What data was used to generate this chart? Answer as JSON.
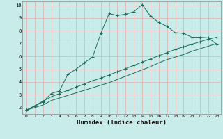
{
  "xlabel": "Humidex (Indice chaleur)",
  "xlim": [
    -0.5,
    23.5
  ],
  "ylim": [
    1.5,
    10.3
  ],
  "xticks": [
    0,
    1,
    2,
    3,
    4,
    5,
    6,
    7,
    8,
    9,
    10,
    11,
    12,
    13,
    14,
    15,
    16,
    17,
    18,
    19,
    20,
    21,
    22,
    23
  ],
  "yticks": [
    2,
    3,
    4,
    5,
    6,
    7,
    8,
    9,
    10
  ],
  "background_color": "#c8ecea",
  "grid_color": "#e8aaaa",
  "line_color": "#1a6b5a",
  "line1_x": [
    0,
    1,
    2,
    3,
    4,
    5,
    6,
    7,
    8,
    9,
    10,
    11,
    12,
    13,
    14,
    15,
    16,
    17,
    18,
    19,
    20,
    21,
    22,
    23
  ],
  "line1_y": [
    1.8,
    2.1,
    2.45,
    3.1,
    3.3,
    4.6,
    5.0,
    5.5,
    5.95,
    7.8,
    9.35,
    9.2,
    9.3,
    9.5,
    10.05,
    9.15,
    8.65,
    8.35,
    7.85,
    7.8,
    7.5,
    7.5,
    7.45,
    6.95
  ],
  "line2_x": [
    0,
    2,
    3,
    4,
    5,
    6,
    7,
    8,
    9,
    10,
    11,
    12,
    13,
    14,
    15,
    16,
    17,
    18,
    19,
    20,
    21,
    22,
    23
  ],
  "line2_y": [
    1.8,
    2.5,
    2.85,
    3.1,
    3.35,
    3.6,
    3.85,
    4.1,
    4.3,
    4.55,
    4.8,
    5.05,
    5.3,
    5.55,
    5.8,
    6.05,
    6.3,
    6.55,
    6.75,
    6.95,
    7.15,
    7.35,
    7.5
  ],
  "line3_x": [
    0,
    2,
    3,
    4,
    5,
    6,
    7,
    8,
    9,
    10,
    11,
    12,
    13,
    14,
    15,
    16,
    17,
    18,
    19,
    20,
    21,
    22,
    23
  ],
  "line3_y": [
    1.8,
    2.2,
    2.55,
    2.75,
    2.95,
    3.15,
    3.35,
    3.55,
    3.75,
    3.95,
    4.2,
    4.45,
    4.7,
    4.95,
    5.2,
    5.5,
    5.75,
    5.95,
    6.15,
    6.4,
    6.6,
    6.8,
    7.0
  ]
}
